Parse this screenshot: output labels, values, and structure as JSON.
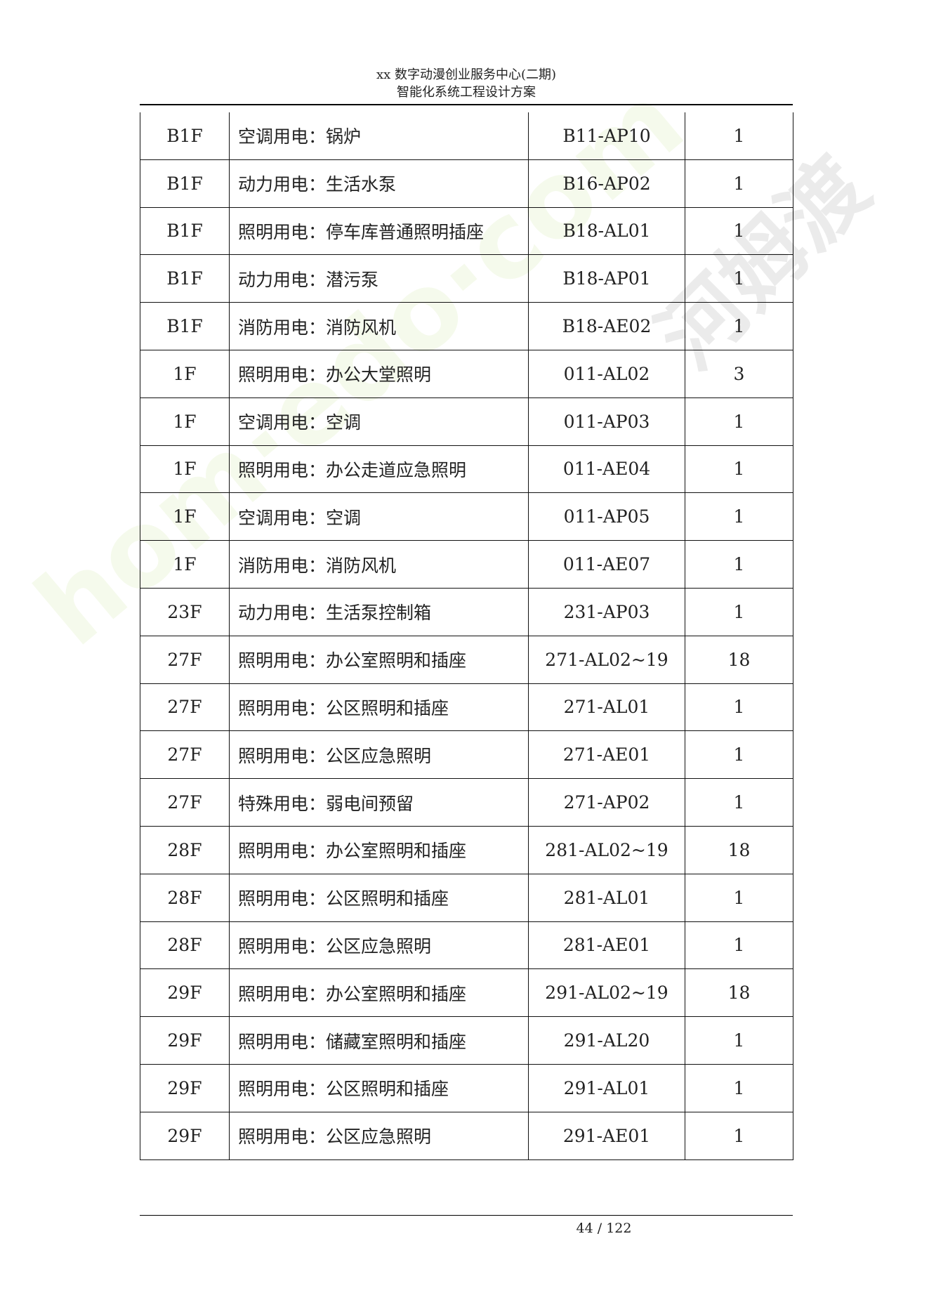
{
  "header": {
    "line1": "xx 数字动漫创业服务中心(二期)",
    "line2": "智能化系统工程设计方案"
  },
  "table": {
    "rows": [
      {
        "floor": "B1F",
        "desc": "空调用电：锅炉",
        "code": "B11-AP10",
        "qty": "1"
      },
      {
        "floor": "B1F",
        "desc": "动力用电：生活水泵",
        "code": "B16-AP02",
        "qty": "1"
      },
      {
        "floor": "B1F",
        "desc": "照明用电：停车库普通照明插座",
        "code": "B18-AL01",
        "qty": "1"
      },
      {
        "floor": "B1F",
        "desc": "动力用电：潜污泵",
        "code": "B18-AP01",
        "qty": "1"
      },
      {
        "floor": "B1F",
        "desc": "消防用电：消防风机",
        "code": "B18-AE02",
        "qty": "1"
      },
      {
        "floor": "1F",
        "desc": "照明用电：办公大堂照明",
        "code": "011-AL02",
        "qty": "3"
      },
      {
        "floor": "1F",
        "desc": "空调用电：空调",
        "code": "011-AP03",
        "qty": "1"
      },
      {
        "floor": "1F",
        "desc": "照明用电：办公走道应急照明",
        "code": "011-AE04",
        "qty": "1"
      },
      {
        "floor": "1F",
        "desc": "空调用电：空调",
        "code": "011-AP05",
        "qty": "1"
      },
      {
        "floor": "1F",
        "desc": "消防用电：消防风机",
        "code": "011-AE07",
        "qty": "1"
      },
      {
        "floor": "23F",
        "desc": "动力用电：生活泵控制箱",
        "code": "231-AP03",
        "qty": "1"
      },
      {
        "floor": "27F",
        "desc": "照明用电：办公室照明和插座",
        "code": "271-AL02~19",
        "qty": "18"
      },
      {
        "floor": "27F",
        "desc": "照明用电：公区照明和插座",
        "code": "271-AL01",
        "qty": "1"
      },
      {
        "floor": "27F",
        "desc": "照明用电：公区应急照明",
        "code": "271-AE01",
        "qty": "1"
      },
      {
        "floor": "27F",
        "desc": "特殊用电：弱电间预留",
        "code": "271-AP02",
        "qty": "1"
      },
      {
        "floor": "28F",
        "desc": "照明用电：办公室照明和插座",
        "code": "281-AL02~19",
        "qty": "18"
      },
      {
        "floor": "28F",
        "desc": "照明用电：公区照明和插座",
        "code": "281-AL01",
        "qty": "1"
      },
      {
        "floor": "28F",
        "desc": "照明用电：公区应急照明",
        "code": "281-AE01",
        "qty": "1"
      },
      {
        "floor": "29F",
        "desc": "照明用电：办公室照明和插座",
        "code": "291-AL02~19",
        "qty": "18"
      },
      {
        "floor": "29F",
        "desc": "照明用电：储藏室照明和插座",
        "code": "291-AL20",
        "qty": "1"
      },
      {
        "floor": "29F",
        "desc": "照明用电：公区照明和插座",
        "code": "291-AL01",
        "qty": "1"
      },
      {
        "floor": "29F",
        "desc": "照明用电：公区应急照明",
        "code": "291-AE01",
        "qty": "1"
      }
    ]
  },
  "footer": {
    "page": "44 / 122"
  },
  "watermark": {
    "text1": "hom.edo.com",
    "text2": "河姆渡"
  }
}
